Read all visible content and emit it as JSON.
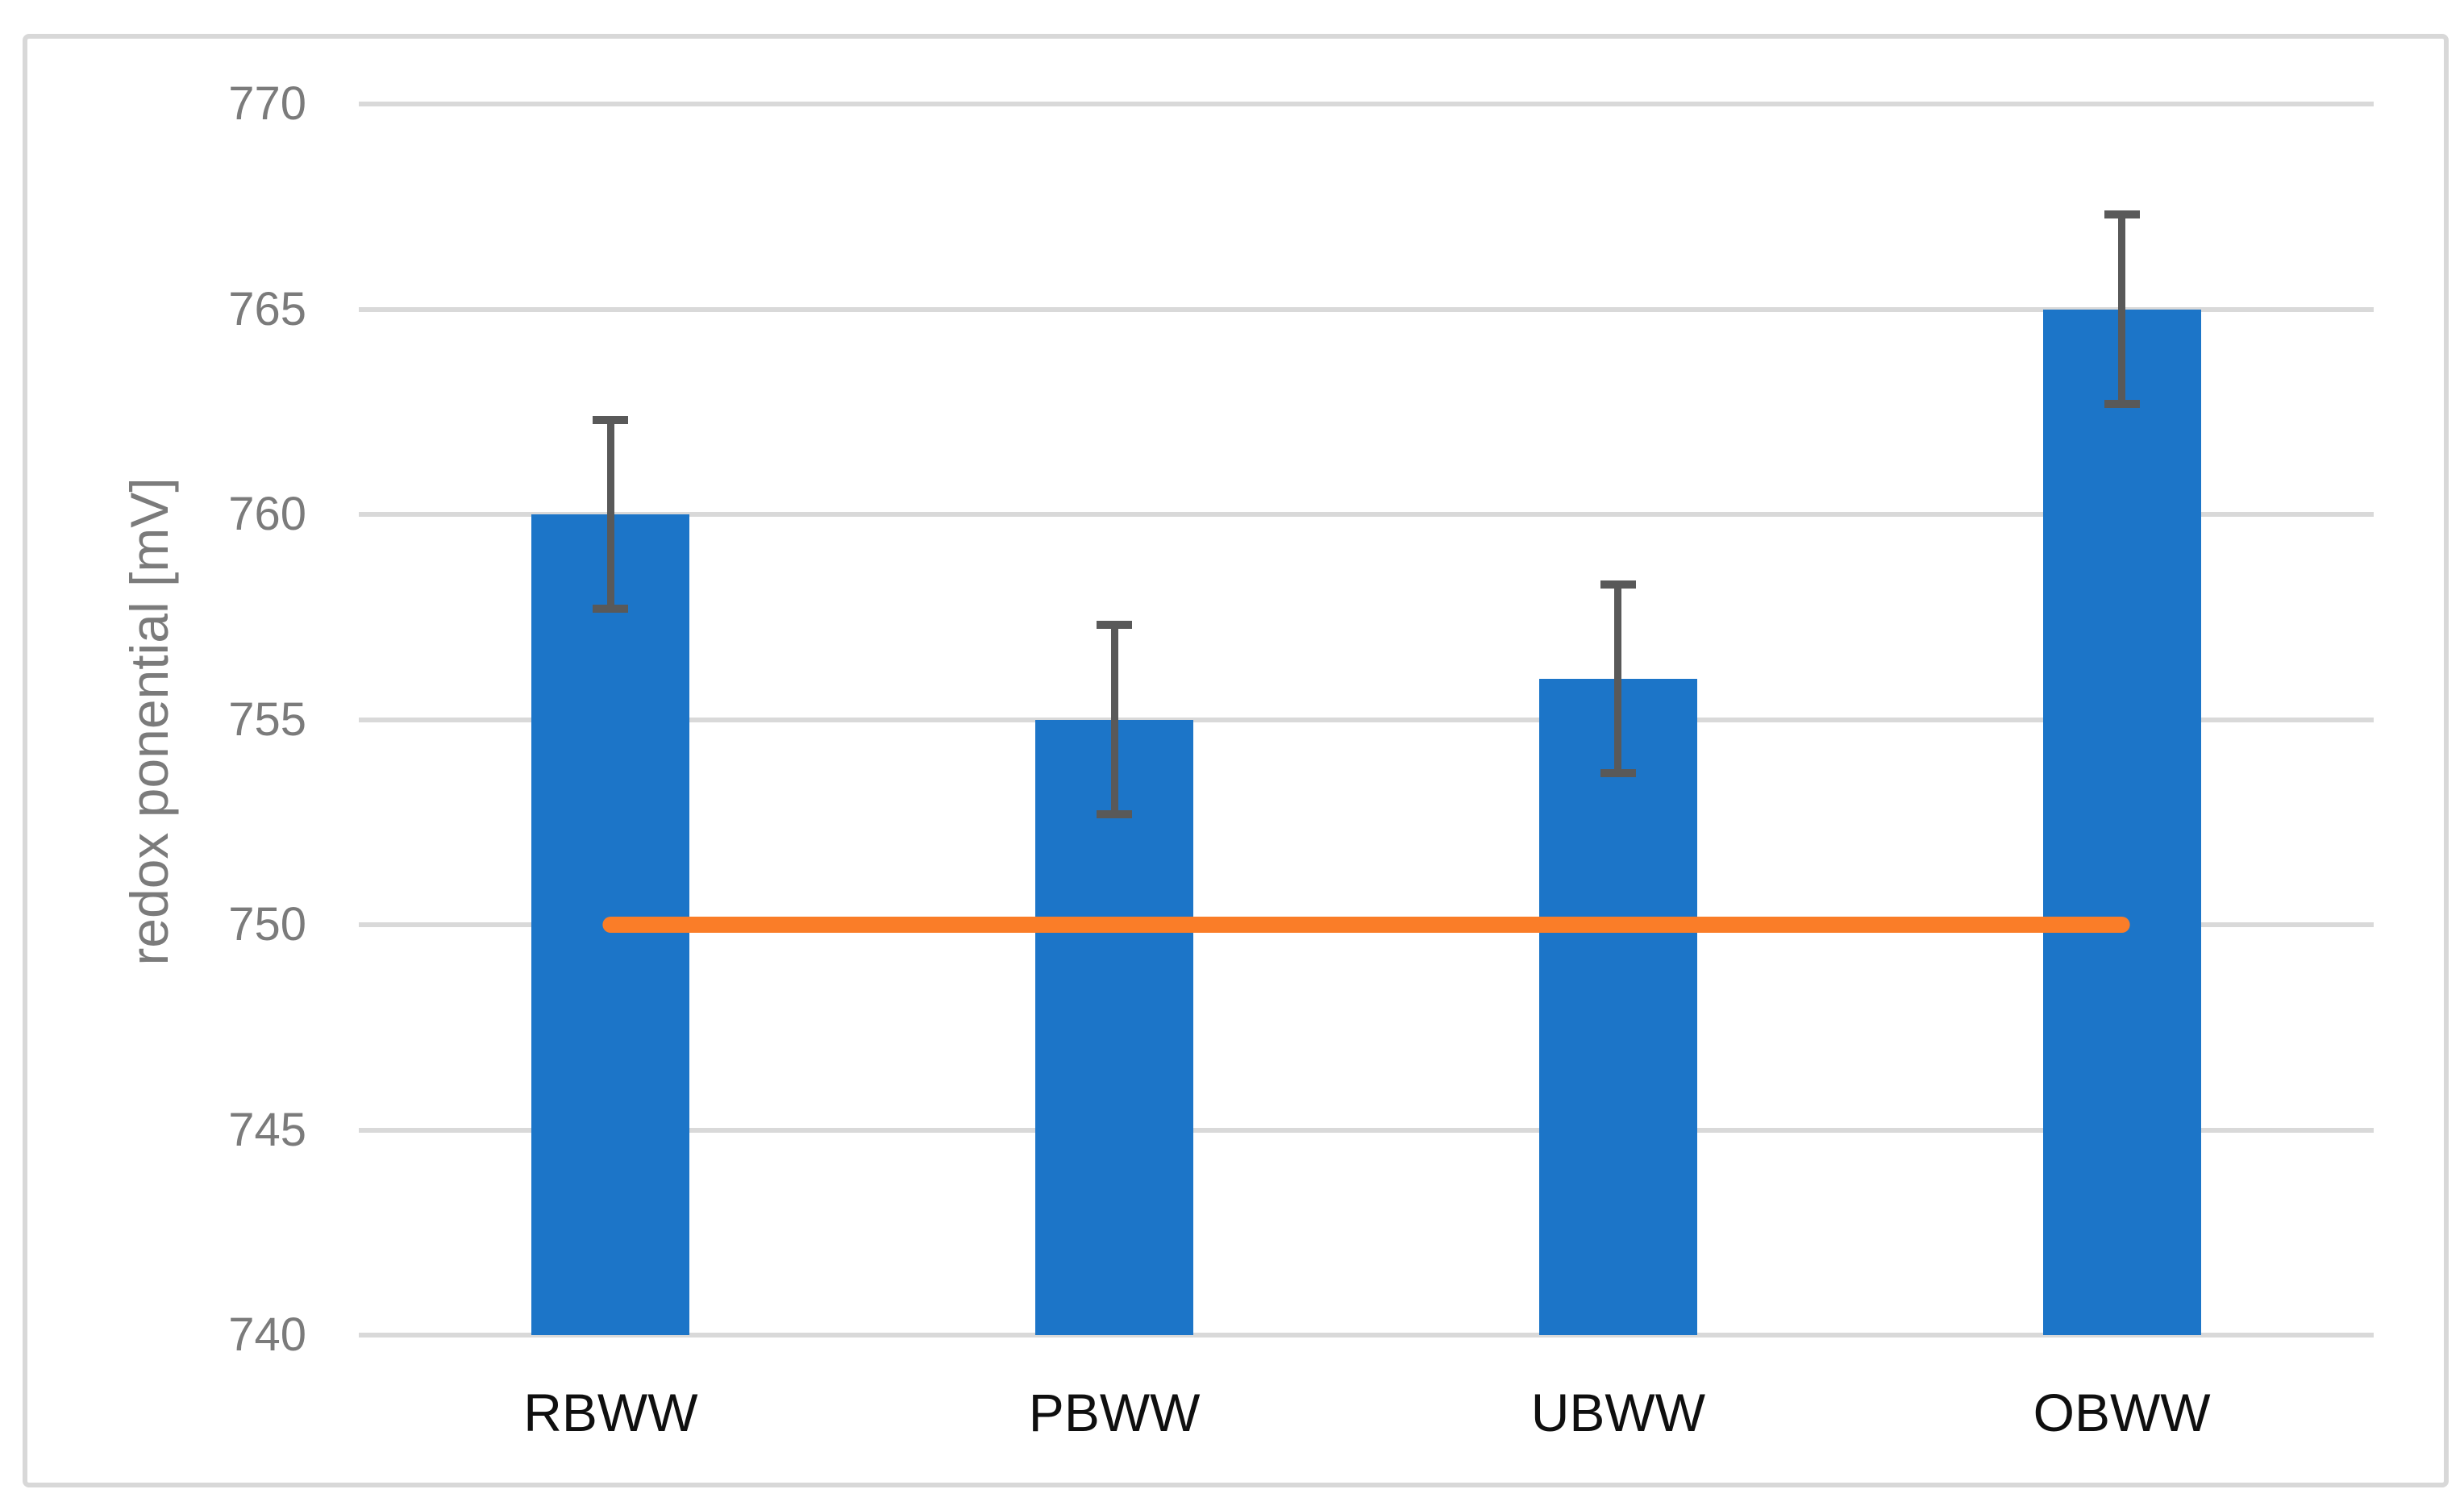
{
  "chart_data": {
    "type": "bar",
    "title": "",
    "xlabel": "",
    "ylabel": "redox ponential [mV]",
    "categories": [
      "RBWW",
      "PBWW",
      "UBWW",
      "OBWW"
    ],
    "series": [
      {
        "name": "redox potential bars",
        "type": "bar",
        "values": [
          760,
          755,
          756,
          765
        ],
        "error_plus": [
          2.3,
          2.3,
          2.3,
          2.3
        ],
        "error_minus": [
          2.3,
          2.3,
          2.3,
          2.3
        ]
      },
      {
        "name": "reference line",
        "type": "line",
        "values": [
          750,
          750,
          750,
          750
        ]
      }
    ],
    "ylim": [
      740,
      770
    ],
    "yticks": [
      740,
      745,
      750,
      755,
      760,
      765,
      770
    ],
    "grid": true,
    "legend": "none"
  },
  "colors": {
    "bar_fill": "#1c75c8",
    "reference_line": "#fa7d28",
    "error_bar": "#595959",
    "gridline": "#d9d9d9",
    "frame_border": "#d8d8d8",
    "y_tick_text": "#7b7b7b",
    "x_tick_text": "#0f0f0f",
    "background": "#ffffff"
  }
}
